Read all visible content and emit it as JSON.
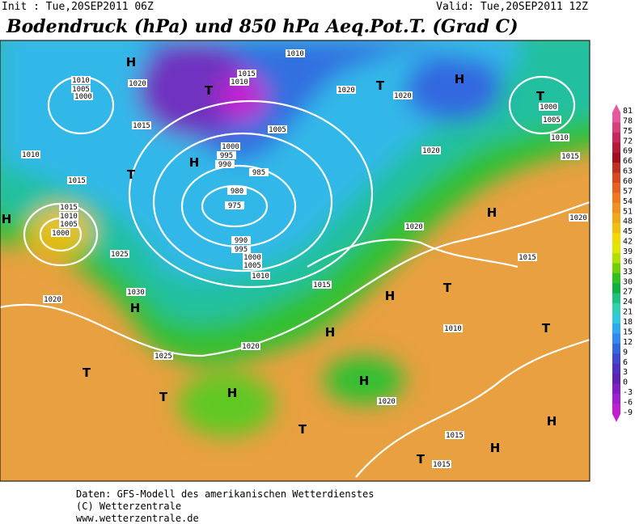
{
  "header": {
    "init": "Init : Tue,20SEP2011 06Z",
    "valid": "Valid: Tue,20SEP2011 12Z",
    "title": "Bodendruck (hPa) und 850 hPa Aeq.Pot.T. (Grad C)"
  },
  "legend": {
    "ticks": [
      81,
      78,
      75,
      72,
      69,
      66,
      63,
      60,
      57,
      54,
      51,
      48,
      45,
      42,
      39,
      36,
      33,
      30,
      27,
      24,
      21,
      18,
      15,
      12,
      9,
      6,
      3,
      0,
      -3,
      -6,
      -9
    ],
    "colors": [
      "#e8589c",
      "#d8407c",
      "#c8285c",
      "#b81838",
      "#a01020",
      "#c03020",
      "#d84820",
      "#e86020",
      "#f07820",
      "#f09020",
      "#f0a818",
      "#f0c010",
      "#f0d800",
      "#e0e800",
      "#b0e000",
      "#70d000",
      "#30c020",
      "#10b040",
      "#20c080",
      "#30d0b0",
      "#30c8e0",
      "#30a8f0",
      "#3088f0",
      "#3068e0",
      "#4048d0",
      "#5030c0",
      "#6020b0",
      "#8020c0",
      "#a020d0",
      "#c020d0"
    ]
  },
  "isobar_labels": [
    "1010",
    "1005",
    "1000",
    "1020",
    "1015",
    "1010",
    "1015",
    "1015",
    "1010",
    "1005",
    "1000",
    "1025",
    "1030",
    "1020",
    "1025",
    "1020",
    "1000",
    "995",
    "990",
    "985",
    "980",
    "975",
    "990",
    "995",
    "1000",
    "1005",
    "1010",
    "1015",
    "1020",
    "1010",
    "1020",
    "1015",
    "1015",
    "1020",
    "1020",
    "1020",
    "1000",
    "1005",
    "1010",
    "1015",
    "1010",
    "1015",
    "1010",
    "1005",
    "1015",
    "1020"
  ],
  "pressure_centers": [
    "H",
    "T",
    "H",
    "T",
    "H",
    "H",
    "T",
    "H",
    "H",
    "H",
    "T",
    "H",
    "T",
    "H",
    "T",
    "T",
    "H",
    "T",
    "T",
    "H",
    "H",
    "T"
  ],
  "footer": [
    "Daten: GFS-Modell des amerikanischen Wetterdienstes",
    "(C) Wetterzentrale",
    "www.wetterzentrale.de"
  ]
}
